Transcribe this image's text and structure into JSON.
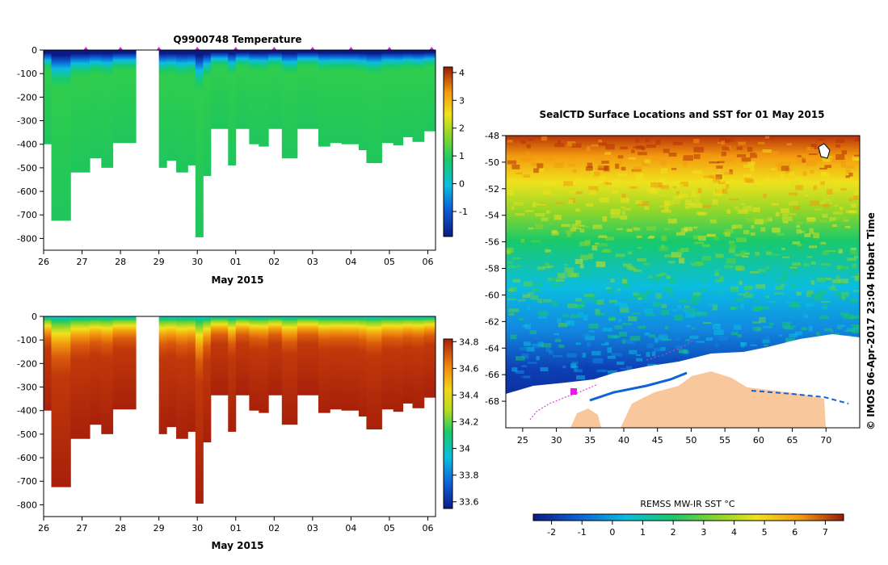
{
  "chart_data": [
    {
      "type": "heatmap",
      "title": "Q9900748  Temperature",
      "xlabel": "May 2015",
      "ylabel": "",
      "x_ticks": [
        "26",
        "27",
        "28",
        "29",
        "30",
        "01",
        "02",
        "03",
        "04",
        "05",
        "06"
      ],
      "y_ticks": [
        0,
        -100,
        -200,
        -300,
        -400,
        -500,
        -600,
        -700,
        -800
      ],
      "ylim": [
        -850,
        0
      ],
      "xlim": [
        26,
        36.2
      ],
      "colorbar": {
        "min": -1.9,
        "max": 4.2,
        "ticks": [
          4,
          3,
          2,
          1,
          0,
          -1
        ]
      },
      "profile_markers": [
        27.1,
        28.0,
        29.0,
        30.0,
        31.0,
        32.0,
        33.0,
        34.0,
        35.0,
        36.1
      ],
      "gap": [
        28.4,
        29.0
      ],
      "profiles": [
        {
          "x0": 26.0,
          "x1": 26.2,
          "depth": 400
        },
        {
          "x0": 26.2,
          "x1": 26.7,
          "depth": 725
        },
        {
          "x0": 26.7,
          "x1": 27.2,
          "depth": 520
        },
        {
          "x0": 27.2,
          "x1": 27.5,
          "depth": 460
        },
        {
          "x0": 27.5,
          "x1": 27.8,
          "depth": 500
        },
        {
          "x0": 27.8,
          "x1": 28.4,
          "depth": 395
        },
        {
          "x0": 29.0,
          "x1": 29.2,
          "depth": 500
        },
        {
          "x0": 29.2,
          "x1": 29.45,
          "depth": 470
        },
        {
          "x0": 29.45,
          "x1": 29.75,
          "depth": 520
        },
        {
          "x0": 29.75,
          "x1": 29.95,
          "depth": 490
        },
        {
          "x0": 29.95,
          "x1": 30.15,
          "depth": 795
        },
        {
          "x0": 30.15,
          "x1": 30.35,
          "depth": 535
        },
        {
          "x0": 30.35,
          "x1": 30.8,
          "depth": 335
        },
        {
          "x0": 30.8,
          "x1": 31.0,
          "depth": 490
        },
        {
          "x0": 31.0,
          "x1": 31.35,
          "depth": 335
        },
        {
          "x0": 31.35,
          "x1": 31.6,
          "depth": 400
        },
        {
          "x0": 31.6,
          "x1": 31.85,
          "depth": 410
        },
        {
          "x0": 31.85,
          "x1": 32.2,
          "depth": 335
        },
        {
          "x0": 32.2,
          "x1": 32.6,
          "depth": 460
        },
        {
          "x0": 32.6,
          "x1": 33.15,
          "depth": 335
        },
        {
          "x0": 33.15,
          "x1": 33.45,
          "depth": 410
        },
        {
          "x0": 33.45,
          "x1": 33.75,
          "depth": 395
        },
        {
          "x0": 33.75,
          "x1": 34.2,
          "depth": 400
        },
        {
          "x0": 34.2,
          "x1": 34.4,
          "depth": 425
        },
        {
          "x0": 34.4,
          "x1": 34.8,
          "depth": 480
        },
        {
          "x0": 34.8,
          "x1": 35.1,
          "depth": 395
        },
        {
          "x0": 35.1,
          "x1": 35.35,
          "depth": 405
        },
        {
          "x0": 35.35,
          "x1": 35.6,
          "depth": 370
        },
        {
          "x0": 35.6,
          "x1": 35.9,
          "depth": 390
        },
        {
          "x0": 35.9,
          "x1": 36.2,
          "depth": 345
        }
      ]
    },
    {
      "type": "heatmap",
      "title": "",
      "xlabel": "May 2015",
      "ylabel": "",
      "x_ticks": [
        "26",
        "27",
        "28",
        "29",
        "30",
        "01",
        "02",
        "03",
        "04",
        "05",
        "06"
      ],
      "y_ticks": [
        0,
        -100,
        -200,
        -300,
        -400,
        -500,
        -600,
        -700,
        -800
      ],
      "ylim": [
        -850,
        0
      ],
      "xlim": [
        26,
        36.2
      ],
      "colorbar": {
        "min": 33.55,
        "max": 34.82,
        "ticks": [
          34.8,
          34.6,
          34.4,
          34.2,
          34,
          33.8,
          33.6
        ]
      }
    },
    {
      "type": "heatmap",
      "title": "SealCTD Surface Locations and SST for 01 May 2015",
      "xlabel": "",
      "ylabel": "",
      "x_ticks": [
        25,
        30,
        35,
        40,
        45,
        50,
        55,
        60,
        65,
        70
      ],
      "y_ticks": [
        -48,
        -50,
        -52,
        -54,
        -56,
        -58,
        -60,
        -62,
        -64,
        -66,
        -68
      ],
      "xlim": [
        22.5,
        75
      ],
      "ylim": [
        -70,
        -48
      ],
      "colorbar": {
        "label": "REMSS MW-IR SST °C",
        "min": -2.6,
        "max": 7.6,
        "ticks": [
          -2,
          -1,
          0,
          1,
          2,
          3,
          4,
          5,
          6,
          7
        ]
      },
      "credit": "© IMOS 06-Apr-2017 23:04 Hobart Time"
    }
  ]
}
